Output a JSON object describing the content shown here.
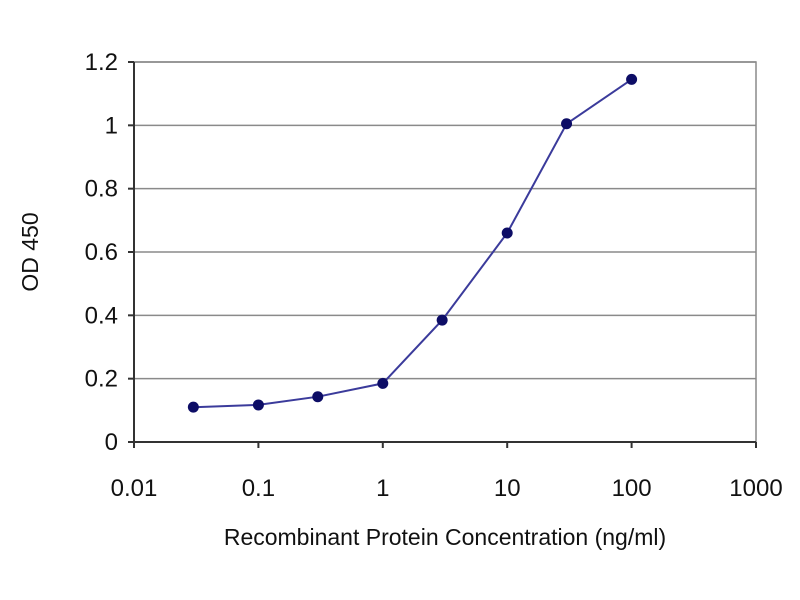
{
  "chart_data": {
    "type": "line",
    "title": "",
    "xlabel": "Recombinant Protein Concentration (ng/ml)",
    "ylabel": "OD 450",
    "x_scale": "log",
    "xlim": [
      0.01,
      1000
    ],
    "ylim": [
      0,
      1.2
    ],
    "x_ticks": [
      0.01,
      0.1,
      1,
      10,
      100,
      1000
    ],
    "x_tick_labels": [
      "0.01",
      "0.1",
      "1",
      "10",
      "100",
      "1000"
    ],
    "y_ticks": [
      0,
      0.2,
      0.4,
      0.6,
      0.8,
      1,
      1.2
    ],
    "y_tick_labels": [
      "0",
      "0.2",
      "0.4",
      "0.6",
      "0.8",
      "1",
      "1.2"
    ],
    "grid": "horizontal",
    "legend": "none",
    "series": [
      {
        "x": [
          0.03,
          0.1,
          0.3,
          1,
          3,
          10,
          30,
          100
        ],
        "y": [
          0.11,
          0.117,
          0.143,
          0.185,
          0.385,
          0.66,
          1.005,
          1.145
        ],
        "color": "#3b3b9b",
        "marker_color": "#0d0d66"
      }
    ],
    "colors": {
      "plot_background": "#ffffff",
      "grid": "#8a8a8a",
      "axis": "#333333",
      "frame": "#8a8a8a"
    }
  }
}
